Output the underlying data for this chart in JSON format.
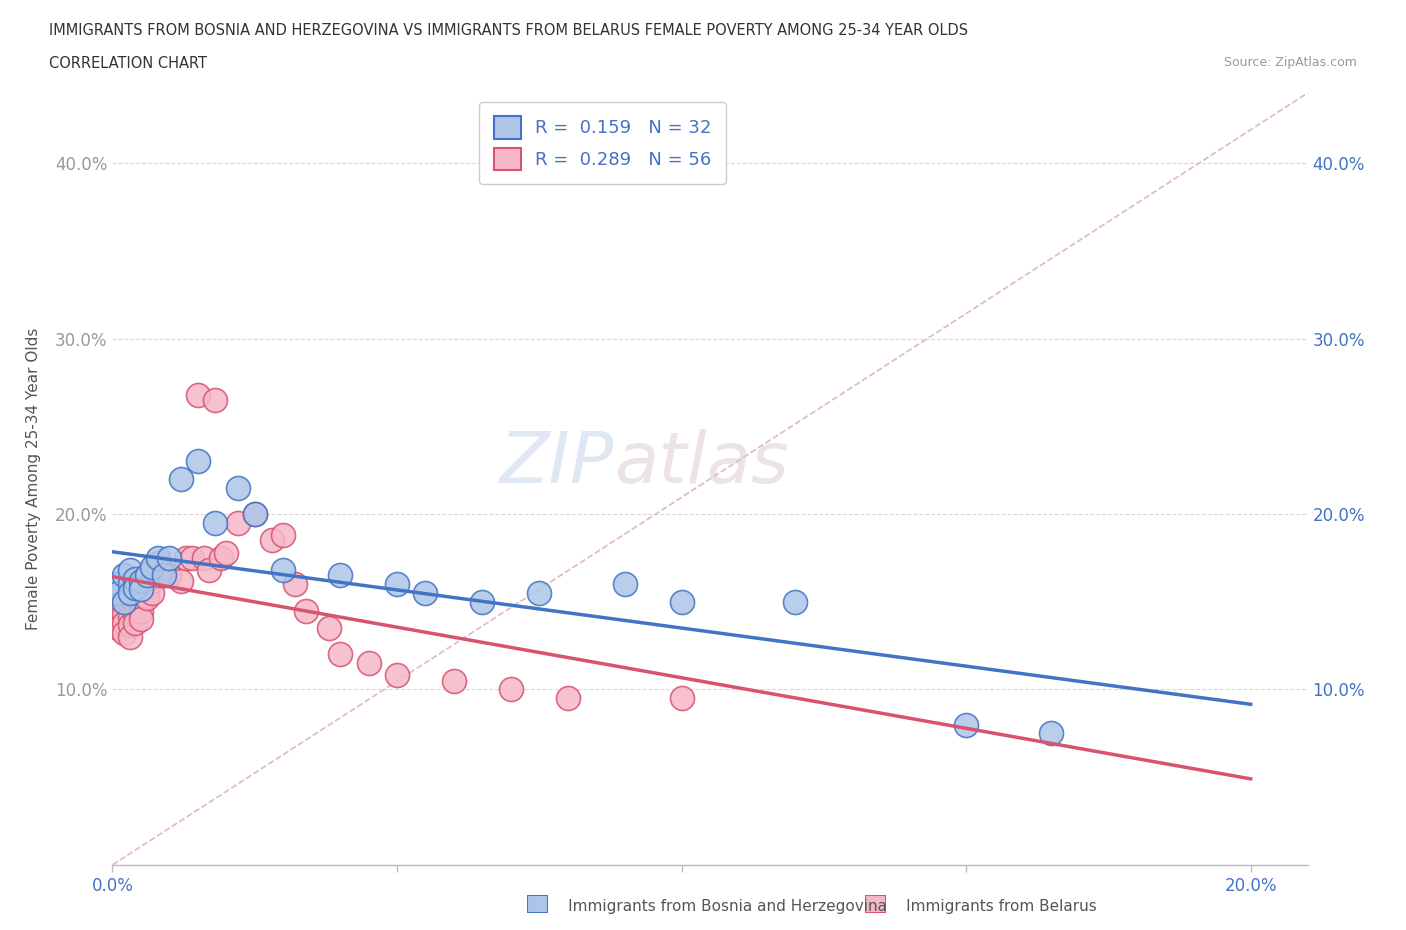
{
  "title_line1": "IMMIGRANTS FROM BOSNIA AND HERZEGOVINA VS IMMIGRANTS FROM BELARUS FEMALE POVERTY AMONG 25-34 YEAR OLDS",
  "title_line2": "CORRELATION CHART",
  "source_text": "Source: ZipAtlas.com",
  "ylabel": "Female Poverty Among 25-34 Year Olds",
  "xlim": [
    0.0,
    0.21
  ],
  "ylim": [
    0.0,
    0.44
  ],
  "legend1_label": "R =  0.159   N = 32",
  "legend2_label": "R =  0.289   N = 56",
  "color_bosnia": "#adc6e8",
  "color_belarus": "#f5b8c8",
  "line_color_bosnia": "#4472c4",
  "line_color_belarus": "#d9526e",
  "diagonal_color": "#d0b0b8",
  "bosnia_x": [
    0.001,
    0.001,
    0.002,
    0.002,
    0.003,
    0.003,
    0.003,
    0.004,
    0.004,
    0.005,
    0.005,
    0.006,
    0.007,
    0.008,
    0.009,
    0.01,
    0.012,
    0.015,
    0.018,
    0.022,
    0.025,
    0.03,
    0.04,
    0.05,
    0.055,
    0.065,
    0.075,
    0.09,
    0.1,
    0.12,
    0.15,
    0.165
  ],
  "bosnia_y": [
    0.16,
    0.155,
    0.165,
    0.15,
    0.16,
    0.168,
    0.155,
    0.163,
    0.158,
    0.162,
    0.157,
    0.165,
    0.17,
    0.175,
    0.165,
    0.175,
    0.22,
    0.23,
    0.195,
    0.215,
    0.2,
    0.168,
    0.165,
    0.16,
    0.155,
    0.15,
    0.155,
    0.16,
    0.15,
    0.15,
    0.08,
    0.075
  ],
  "belarus_x": [
    0.001,
    0.001,
    0.001,
    0.001,
    0.002,
    0.002,
    0.002,
    0.002,
    0.003,
    0.003,
    0.003,
    0.003,
    0.003,
    0.004,
    0.004,
    0.004,
    0.004,
    0.004,
    0.005,
    0.005,
    0.005,
    0.005,
    0.005,
    0.006,
    0.006,
    0.006,
    0.007,
    0.007,
    0.007,
    0.008,
    0.008,
    0.009,
    0.01,
    0.012,
    0.013,
    0.014,
    0.015,
    0.016,
    0.017,
    0.018,
    0.019,
    0.02,
    0.022,
    0.025,
    0.028,
    0.03,
    0.032,
    0.034,
    0.038,
    0.04,
    0.045,
    0.05,
    0.06,
    0.07,
    0.08,
    0.1
  ],
  "belarus_y": [
    0.155,
    0.148,
    0.14,
    0.135,
    0.15,
    0.143,
    0.138,
    0.132,
    0.155,
    0.148,
    0.142,
    0.137,
    0.13,
    0.158,
    0.152,
    0.148,
    0.143,
    0.138,
    0.162,
    0.155,
    0.15,
    0.145,
    0.14,
    0.165,
    0.158,
    0.152,
    0.168,
    0.162,
    0.155,
    0.172,
    0.165,
    0.165,
    0.165,
    0.162,
    0.175,
    0.175,
    0.268,
    0.175,
    0.168,
    0.265,
    0.175,
    0.178,
    0.195,
    0.2,
    0.185,
    0.188,
    0.16,
    0.145,
    0.135,
    0.12,
    0.115,
    0.108,
    0.105,
    0.1,
    0.095,
    0.095
  ],
  "watermark_zip": "ZIP",
  "watermark_atlas": "atlas"
}
